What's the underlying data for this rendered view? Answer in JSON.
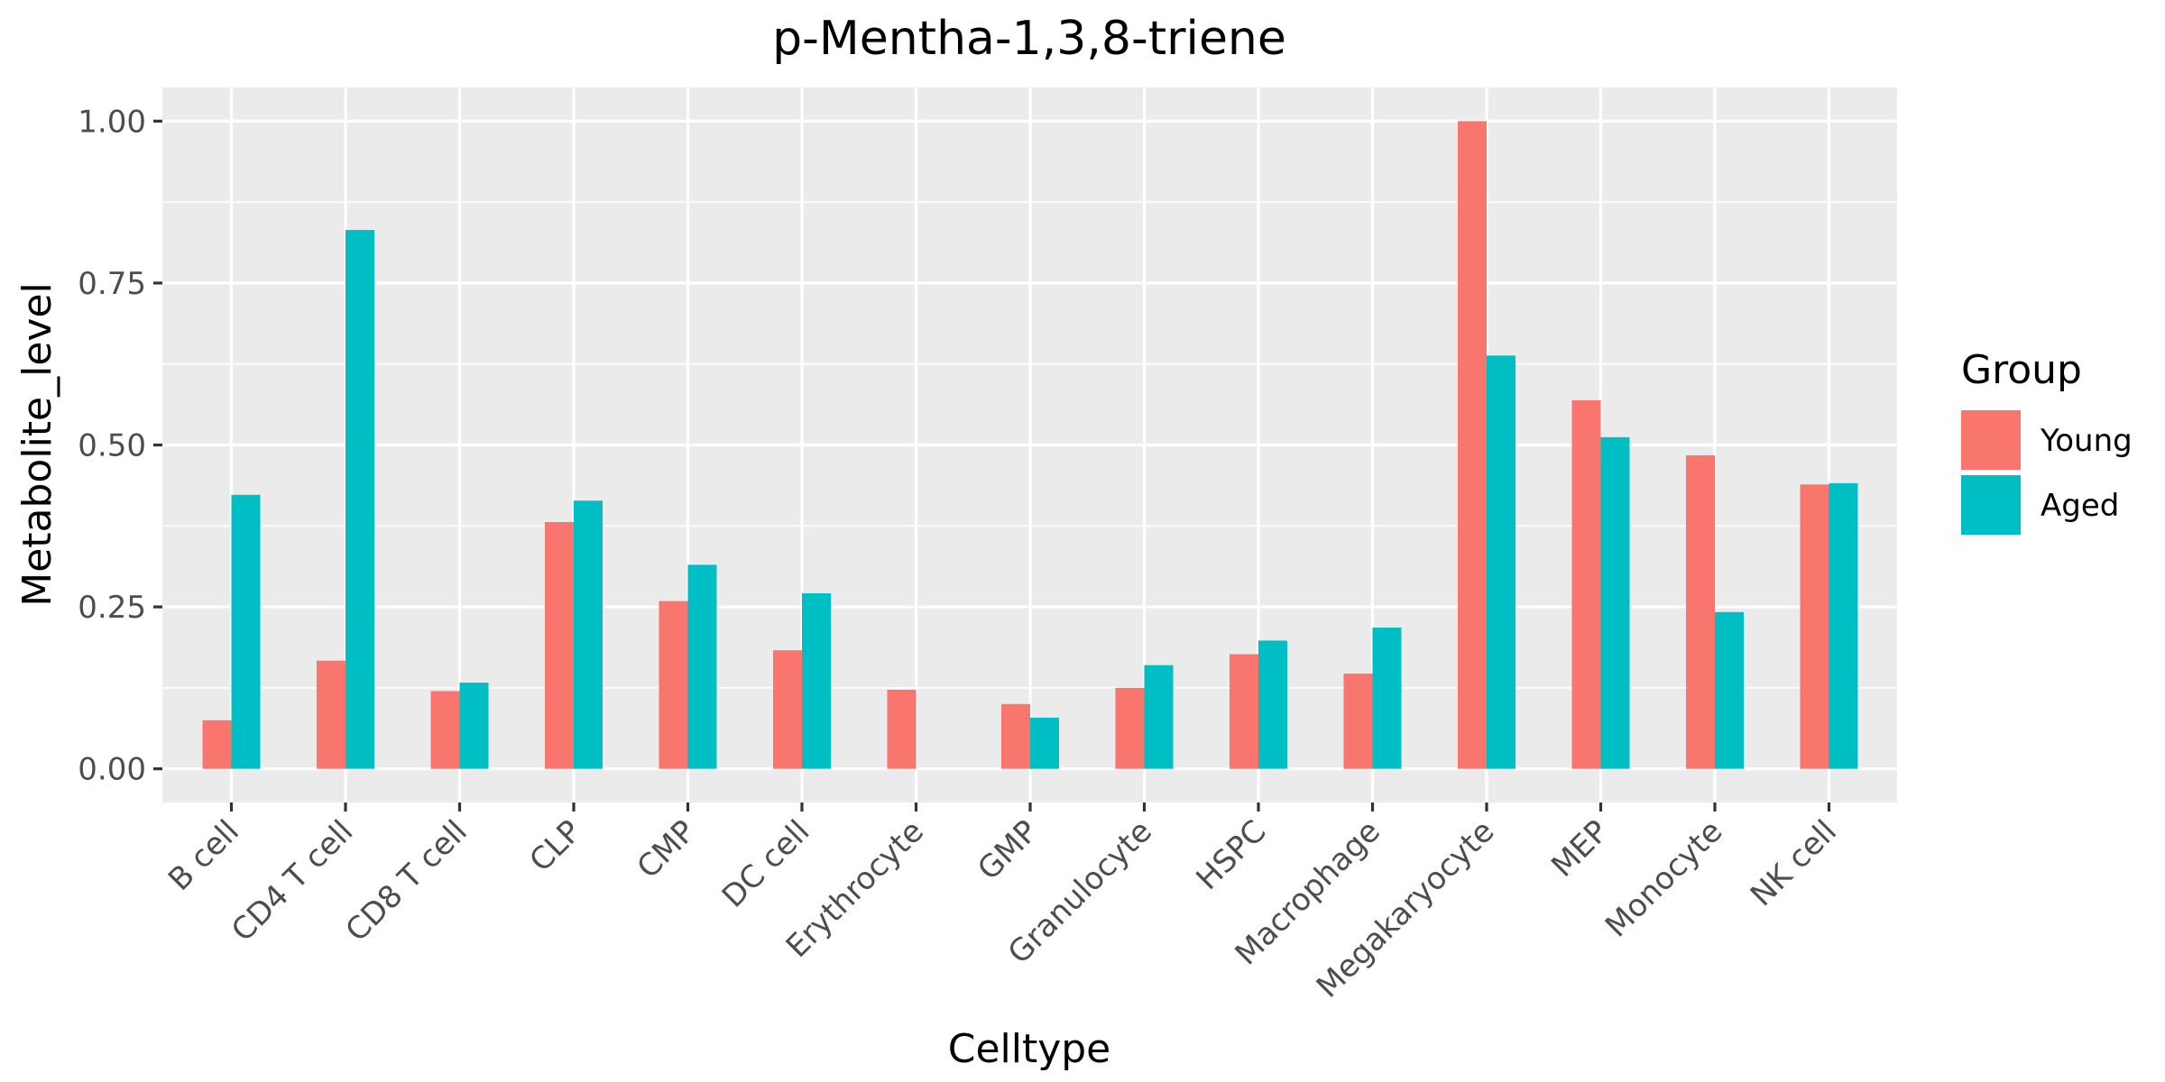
{
  "chart_data": {
    "type": "bar",
    "title": "p-Mentha-1,3,8-triene",
    "xlabel": "Celltype",
    "ylabel": "Metabolite_level",
    "categories": [
      "B cell",
      "CD4 T cell",
      "CD8 T cell",
      "CLP",
      "CMP",
      "DC cell",
      "Erythrocyte",
      "GMP",
      "Granulocyte",
      "HSPC",
      "Macrophage",
      "Megakaryocyte",
      "MEP",
      "Monocyte",
      "NK cell"
    ],
    "series": [
      {
        "name": "Young",
        "color": "#F8766D",
        "values": [
          0.075,
          0.167,
          0.12,
          0.381,
          0.259,
          0.183,
          0.122,
          0.1,
          0.125,
          0.177,
          0.147,
          1.0,
          0.569,
          0.484,
          0.439
        ]
      },
      {
        "name": "Aged",
        "color": "#00BFC4",
        "values": [
          0.423,
          0.832,
          0.133,
          0.414,
          0.315,
          0.271,
          null,
          0.079,
          0.16,
          0.198,
          0.218,
          0.638,
          0.512,
          0.242,
          0.441
        ]
      }
    ],
    "ylim": [
      -0.052,
      1.052
    ],
    "yticks": [
      "0.00",
      "0.25",
      "0.50",
      "0.75",
      "1.00"
    ],
    "grid": true,
    "panel_background": "#EBEBEB",
    "legend": {
      "title": "Group",
      "position": "right"
    }
  }
}
